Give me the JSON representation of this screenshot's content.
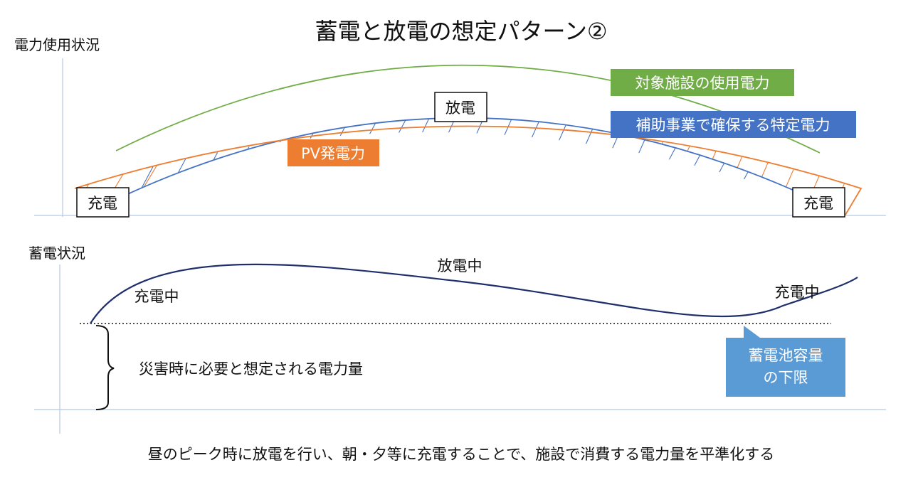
{
  "title": "蓄電と放電の想定パターン②",
  "top_panel": {
    "axis_label": "電力使用状況",
    "labels": {
      "facility_power": "対象施設の使用電力",
      "specified_power": "補助事業で確保する特定電力",
      "pv_power": "PV発電力",
      "discharge": "放電",
      "charge_left": "充電",
      "charge_right": "充電"
    },
    "colors": {
      "facility_power": "#70ad47",
      "specified_power": "#4472c4",
      "pv_power": "#ed7d31",
      "axis": "#b4c7e7"
    }
  },
  "bottom_panel": {
    "axis_label": "蓄電状況",
    "labels": {
      "charging_left": "充電中",
      "discharging": "放電中",
      "charging_right": "充電中",
      "required_energy": "災害時に必要と想定される電力量",
      "capacity_lower_limit": "蓄電池容量\nの下限"
    },
    "colors": {
      "storage_curve": "#1f2f6b",
      "callout": "#5b9bd5"
    }
  },
  "caption": "昼のピーク時に放電を行い、朝・夕等に充電することで、施設で消費する電力量を平準化する"
}
